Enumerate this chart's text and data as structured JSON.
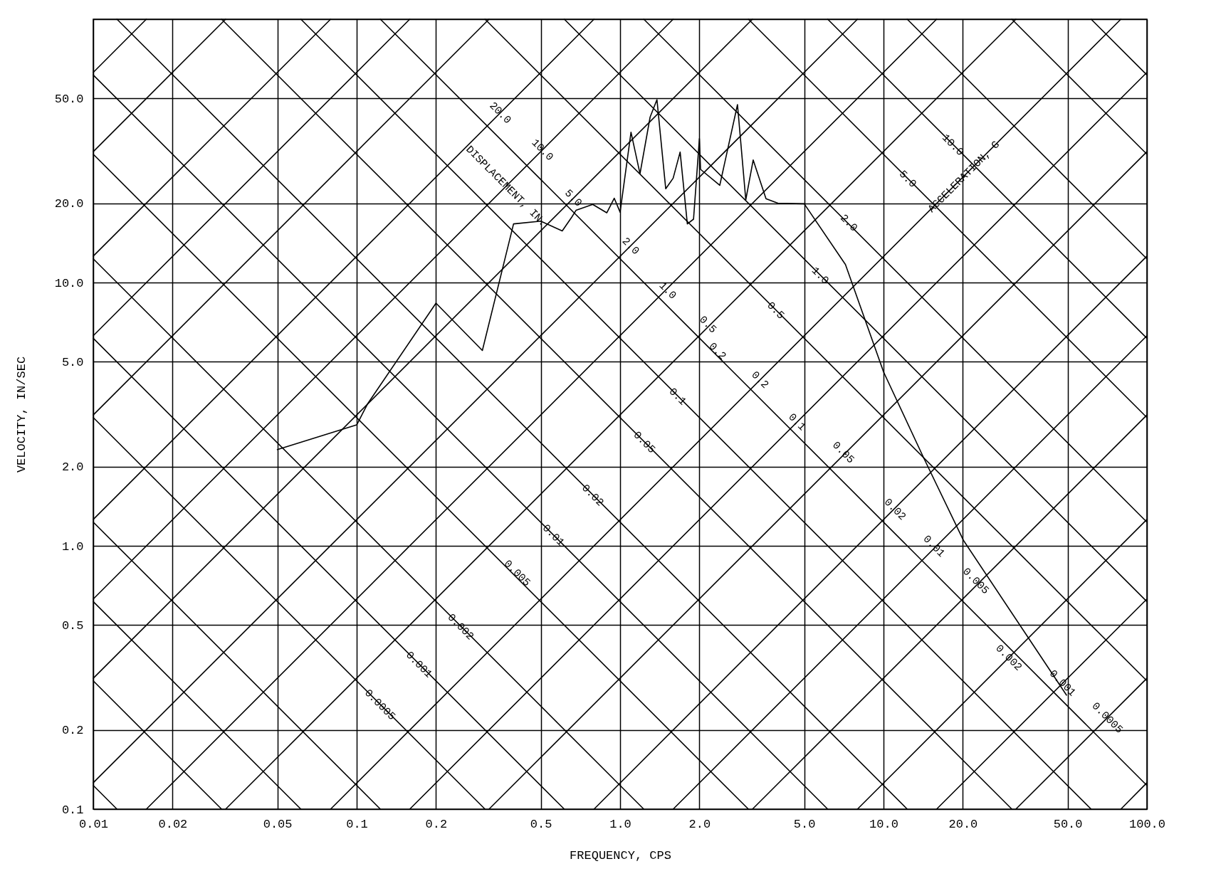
{
  "chart_data": {
    "type": "line",
    "xlabel": "FREQUENCY, CPS",
    "ylabel": "VELOCITY, IN/SEC",
    "log": "xy",
    "grid": true,
    "xlim": [
      0.01,
      100
    ],
    "ylim": [
      0.1,
      100
    ],
    "xticks": [
      0.01,
      0.02,
      0.05,
      0.1,
      0.2,
      0.5,
      {
        "value": 1,
        "label": "1.0"
      },
      {
        "value": 2,
        "label": "2.0"
      },
      {
        "value": 5,
        "label": "5.0"
      },
      {
        "value": 10,
        "label": "10.0"
      },
      {
        "value": 20,
        "label": "20.0"
      },
      {
        "value": 50,
        "label": "50.0"
      },
      {
        "value": 100,
        "label": "100.0"
      }
    ],
    "yticks": [
      0.1,
      0.2,
      0.5,
      {
        "value": 1,
        "label": "1.0"
      },
      {
        "value": 2,
        "label": "2.0"
      },
      {
        "value": 5,
        "label": "5.0"
      },
      {
        "value": 10,
        "label": "10.0"
      },
      {
        "value": 20,
        "label": "20.0"
      },
      {
        "value": 50,
        "label": "50.0"
      },
      {
        "value": 100,
        "label": null
      }
    ],
    "series": [
      {
        "color": "#000000",
        "x": [
          0.05,
          0.1,
          0.11,
          0.2,
          0.3,
          0.394,
          0.5,
          0.603,
          0.655,
          0.68,
          0.787,
          0.89,
          0.95,
          1.0,
          1.1,
          1.19,
          1.3,
          1.38,
          1.49,
          1.59,
          1.69,
          1.8,
          1.9,
          2.0,
          2.02,
          2.39,
          2.79,
          3.0,
          3.2,
          3.58,
          3.97,
          5.0,
          7.17,
          10.0,
          14.2,
          20.1,
          49.5
        ],
        "values": [
          2.32,
          2.88,
          3.46,
          8.35,
          5.52,
          16.7,
          17.1,
          15.7,
          17.7,
          18.8,
          19.8,
          18.4,
          20.9,
          18.5,
          37.2,
          25.9,
          42.5,
          49.5,
          22.7,
          24.9,
          31.3,
          16.7,
          17.4,
          35.2,
          26.9,
          23.4,
          47.4,
          20.6,
          29.2,
          20.8,
          20.0,
          19.9,
          11.7,
          4.58,
          2.16,
          1.05,
          0.271
        ]
      },
      {
        "color": "#000000",
        "x": [
          79.6,
          100
        ],
        "values": [
          0.1,
          0.126
        ]
      },
      {
        "color": "#000000",
        "x": [
          31.8,
          100
        ],
        "values": [
          0.1,
          0.314
        ]
      },
      {
        "color": "#000000",
        "x": [
          15.9,
          100
        ],
        "values": [
          0.1,
          0.628
        ]
      },
      {
        "color": "#000000",
        "x": [
          7.96,
          100
        ],
        "values": [
          0.1,
          1.26
        ]
      },
      {
        "color": "#000000",
        "x": [
          3.18,
          100
        ],
        "values": [
          0.1,
          3.14
        ]
      },
      {
        "color": "#000000",
        "x": [
          1.59,
          100
        ],
        "values": [
          0.1,
          6.28
        ]
      },
      {
        "color": "#000000",
        "x": [
          0.796,
          100
        ],
        "values": [
          0.1,
          12.6
        ]
      },
      {
        "color": "#000000",
        "x": [
          0.318,
          100
        ],
        "values": [
          0.1,
          31.4
        ]
      },
      {
        "color": "#000000",
        "x": [
          0.159,
          100
        ],
        "values": [
          0.1,
          62.8
        ]
      },
      {
        "color": "#000000",
        "x": [
          0.0796,
          79.6
        ],
        "values": [
          0.1,
          100
        ]
      },
      {
        "color": "#000000",
        "x": [
          0.0318,
          31.8
        ],
        "values": [
          0.1,
          100
        ]
      },
      {
        "color": "#000000",
        "x": [
          0.0159,
          15.9
        ],
        "values": [
          0.1,
          100
        ]
      },
      {
        "color": "#000000",
        "x": [
          0.01,
          7.96
        ],
        "values": [
          0.126,
          100
        ]
      },
      {
        "color": "#000000",
        "x": [
          0.01,
          3.18
        ],
        "values": [
          0.314,
          100
        ]
      },
      {
        "color": "#000000",
        "x": [
          0.01,
          1.59
        ],
        "values": [
          0.628,
          100
        ]
      },
      {
        "color": "#000000",
        "x": [
          0.01,
          0.796
        ],
        "values": [
          1.26,
          100
        ]
      },
      {
        "color": "#000000",
        "x": [
          0.01,
          0.318
        ],
        "values": [
          3.14,
          100
        ]
      },
      {
        "color": "#000000",
        "x": [
          0.01,
          0.159
        ],
        "values": [
          6.28,
          100
        ]
      },
      {
        "color": "#000000",
        "x": [
          0.01,
          0.0796
        ],
        "values": [
          12.6,
          100
        ]
      },
      {
        "color": "#000000",
        "x": [
          0.01,
          0.0318
        ],
        "values": [
          31.4,
          100
        ]
      },
      {
        "color": "#000000",
        "x": [
          0.01,
          0.0159
        ],
        "values": [
          62.8,
          100
        ]
      },
      {
        "color": "#000000",
        "x": [
          0.01,
          0.0123
        ],
        "values": [
          0.123,
          0.1
        ]
      },
      {
        "color": "#000000",
        "x": [
          0.01,
          0.0307
        ],
        "values": [
          0.307,
          0.1
        ]
      },
      {
        "color": "#000000",
        "x": [
          0.01,
          0.0614
        ],
        "values": [
          0.614,
          0.1
        ]
      },
      {
        "color": "#000000",
        "x": [
          0.01,
          0.123
        ],
        "values": [
          1.23,
          0.1
        ]
      },
      {
        "color": "#000000",
        "x": [
          0.01,
          0.307
        ],
        "values": [
          3.07,
          0.1
        ]
      },
      {
        "color": "#000000",
        "x": [
          0.01,
          0.614
        ],
        "values": [
          6.14,
          0.1
        ]
      },
      {
        "color": "#000000",
        "x": [
          0.01,
          1.23
        ],
        "values": [
          12.3,
          0.1
        ]
      },
      {
        "color": "#000000",
        "x": [
          0.01,
          3.07
        ],
        "values": [
          30.7,
          0.1
        ]
      },
      {
        "color": "#000000",
        "x": [
          0.01,
          6.14
        ],
        "values": [
          61.4,
          0.1
        ]
      },
      {
        "color": "#000000",
        "x": [
          0.0123,
          12.3
        ],
        "values": [
          100,
          0.1
        ]
      },
      {
        "color": "#000000",
        "x": [
          0.0307,
          30.7
        ],
        "values": [
          100,
          0.1
        ]
      },
      {
        "color": "#000000",
        "x": [
          0.0614,
          61.4
        ],
        "values": [
          100,
          0.1
        ]
      },
      {
        "color": "#000000",
        "x": [
          0.123,
          100
        ],
        "values": [
          100,
          0.123
        ]
      },
      {
        "color": "#000000",
        "x": [
          0.307,
          100
        ],
        "values": [
          100,
          0.307
        ]
      },
      {
        "color": "#000000",
        "x": [
          0.614,
          100
        ],
        "values": [
          100,
          0.614
        ]
      },
      {
        "color": "#000000",
        "x": [
          1.23,
          100
        ],
        "values": [
          100,
          1.23
        ]
      },
      {
        "color": "#000000",
        "x": [
          3.07,
          100
        ],
        "values": [
          100,
          3.07
        ]
      },
      {
        "color": "#000000",
        "x": [
          6.14,
          100
        ],
        "values": [
          100,
          6.14
        ]
      },
      {
        "color": "#000000",
        "x": [
          12.3,
          100
        ],
        "values": [
          100,
          12.3
        ]
      },
      {
        "color": "#000000",
        "x": [
          30.7,
          100
        ],
        "values": [
          100,
          30.7
        ]
      },
      {
        "color": "#000000",
        "x": [
          61.4,
          100
        ],
        "values": [
          100,
          61.4
        ]
      }
    ],
    "annotations": [
      {
        "text": "20.0",
        "x": 0.352,
        "y": 44.2
      },
      {
        "text": "10.0",
        "x": 0.509,
        "y": 32
      },
      {
        "text": "5.0",
        "x": 0.667,
        "y": 21
      },
      {
        "text": "2.0",
        "x": 1.1,
        "y": 13.8
      },
      {
        "text": "1.0",
        "x": 1.52,
        "y": 9.35
      },
      {
        "text": "0.5",
        "x": 2.16,
        "y": 6.95
      },
      {
        "text": "0.2",
        "x": 3.41,
        "y": 4.28
      },
      {
        "text": "0.1",
        "x": 4.71,
        "y": 2.96
      },
      {
        "text": "0.05",
        "x": 7.06,
        "y": 2.27
      },
      {
        "text": "0.02",
        "x": 11.1,
        "y": 1.38
      },
      {
        "text": "0.01",
        "x": 15.6,
        "y": 1.0
      },
      {
        "text": "0.005",
        "x": 22.5,
        "y": 0.738
      },
      {
        "text": "0.002",
        "x": 30,
        "y": 0.377
      },
      {
        "text": "0.001",
        "x": 48,
        "y": 0.302
      },
      {
        "text": "0.0005",
        "x": 71,
        "y": 0.223
      },
      {
        "text": "10.0",
        "x": 18.4,
        "y": 33.4
      },
      {
        "text": "5.0",
        "x": 12.4,
        "y": 24.8
      },
      {
        "text": "2.0",
        "x": 7.41,
        "y": 16.9
      },
      {
        "text": "1.0",
        "x": 5.77,
        "y": 10.65
      },
      {
        "text": "0.5",
        "x": 3.91,
        "y": 7.86
      },
      {
        "text": "0.2",
        "x": 2.35,
        "y": 5.5
      },
      {
        "text": "0.1",
        "x": 1.66,
        "y": 3.7
      },
      {
        "text": "0.05",
        "x": 1.24,
        "y": 2.48
      },
      {
        "text": "0.02",
        "x": 0.79,
        "y": 1.56
      },
      {
        "text": "0.01",
        "x": 0.56,
        "y": 1.1
      },
      {
        "text": "0.005",
        "x": 0.408,
        "y": 0.79
      },
      {
        "text": "0.002",
        "x": 0.249,
        "y": 0.494
      },
      {
        "text": "0.001",
        "x": 0.173,
        "y": 0.355
      },
      {
        "text": "0.0005",
        "x": 0.123,
        "y": 0.25
      },
      {
        "text": "DISPLACEMENT, IN.",
        "x": 0.371,
        "y": 23.3
      },
      {
        "text": "ACCELERATION, G",
        "x": 20.1,
        "y": 25.3
      }
    ]
  }
}
